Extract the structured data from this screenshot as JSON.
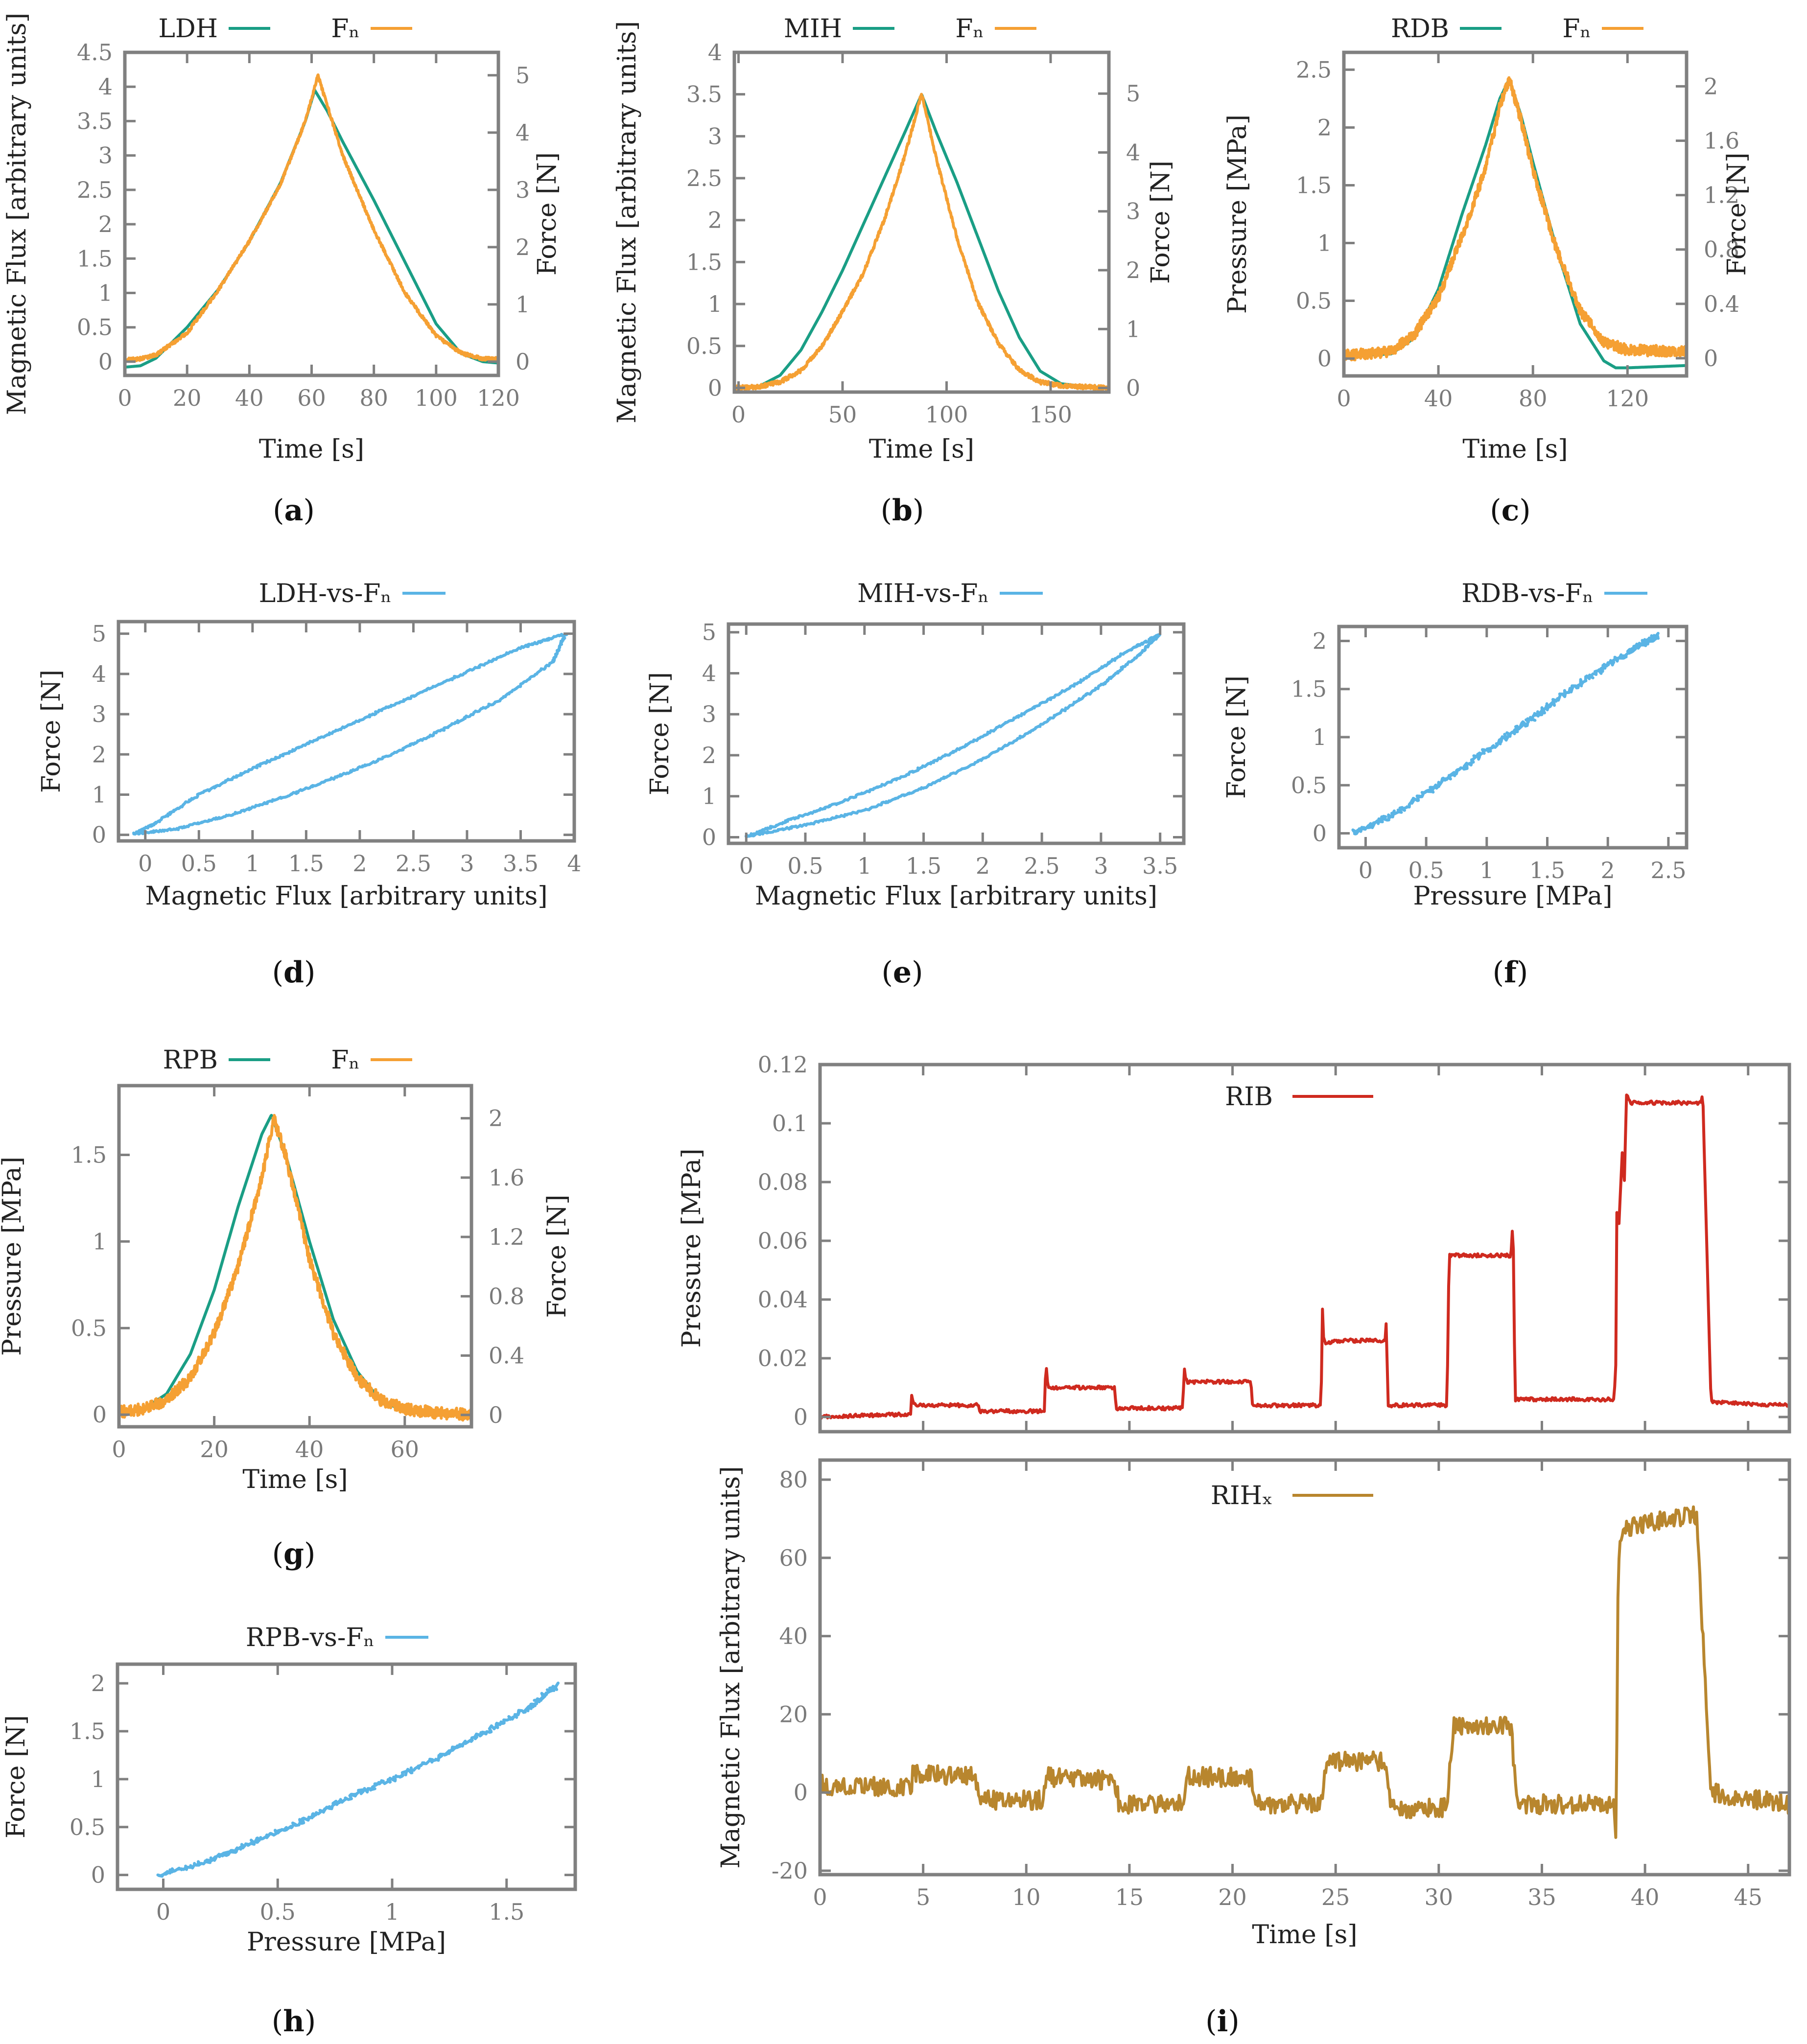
{
  "colors": {
    "green": "#1a9e85",
    "orange": "#f5a033",
    "blue": "#5ab4e5",
    "red": "#cf2a1f",
    "brown": "#b8862e"
  },
  "chart_data": [
    {
      "id": "a",
      "type": "line",
      "caption": "a",
      "xlabel": "Time [s]",
      "ylabel": "Magnetic Flux [arbitrary units]",
      "y2label": "Force [N]",
      "xlim": [
        0,
        120
      ],
      "ylim": [
        -0.2,
        4.5
      ],
      "y2lim": [
        -0.24,
        5.4
      ],
      "xticks": [
        0,
        20,
        40,
        60,
        80,
        100,
        120
      ],
      "yticks": [
        0,
        0.5,
        1,
        1.5,
        2,
        2.5,
        3,
        3.5,
        4,
        4.5
      ],
      "y2ticks": [
        0,
        1,
        2,
        3,
        4,
        5
      ],
      "series": [
        {
          "name": "LDH",
          "color": "green",
          "axis": "y",
          "noise": 0,
          "x": [
            0,
            5,
            10,
            20,
            30,
            40,
            50,
            58,
            61,
            65,
            70,
            80,
            90,
            100,
            108,
            115,
            120
          ],
          "y": [
            -0.08,
            -0.06,
            0.05,
            0.5,
            1.05,
            1.75,
            2.6,
            3.5,
            3.95,
            3.65,
            3.2,
            2.35,
            1.45,
            0.55,
            0.12,
            0.0,
            -0.02
          ]
        },
        {
          "name": "Fₙ",
          "color": "orange",
          "axis": "y2",
          "noise": 0.03,
          "x": [
            0,
            5,
            10,
            20,
            30,
            40,
            50,
            58,
            62,
            66,
            70,
            80,
            90,
            100,
            108,
            115,
            120
          ],
          "y": [
            0.03,
            0.05,
            0.12,
            0.5,
            1.25,
            2.1,
            3.1,
            4.2,
            5.0,
            4.3,
            3.6,
            2.3,
            1.2,
            0.45,
            0.15,
            0.05,
            0.05
          ]
        }
      ]
    },
    {
      "id": "b",
      "type": "line",
      "caption": "b",
      "xlabel": "Time [s]",
      "ylabel": "Magnetic Flux [arbitrary units]",
      "y2label": "Force [N]",
      "xlim": [
        -2,
        178
      ],
      "ylim": [
        -0.05,
        4
      ],
      "y2lim": [
        -0.07,
        5.7
      ],
      "xticks": [
        0,
        50,
        100,
        150
      ],
      "yticks": [
        0,
        0.5,
        1,
        1.5,
        2,
        2.5,
        3,
        3.5,
        4
      ],
      "y2ticks": [
        0,
        1,
        2,
        3,
        4,
        5
      ],
      "series": [
        {
          "name": "MIH",
          "color": "green",
          "axis": "y",
          "noise": 0,
          "x": [
            -2,
            10,
            20,
            30,
            40,
            50,
            60,
            70,
            80,
            88,
            95,
            105,
            115,
            125,
            135,
            145,
            155,
            165,
            178
          ],
          "y": [
            0,
            0.02,
            0.15,
            0.45,
            0.9,
            1.4,
            1.95,
            2.5,
            3.05,
            3.5,
            3.05,
            2.45,
            1.8,
            1.15,
            0.6,
            0.2,
            0.05,
            0.02,
            0.0
          ]
        },
        {
          "name": "Fₙ",
          "color": "orange",
          "axis": "y2",
          "noise": 0.035,
          "x": [
            -2,
            10,
            20,
            30,
            40,
            50,
            60,
            70,
            80,
            88,
            95,
            105,
            115,
            125,
            135,
            145,
            155,
            165,
            178
          ],
          "y": [
            0,
            0.02,
            0.1,
            0.3,
            0.7,
            1.3,
            1.95,
            2.85,
            3.95,
            5.0,
            3.9,
            2.55,
            1.45,
            0.75,
            0.3,
            0.1,
            0.04,
            0.02,
            0.0
          ]
        }
      ]
    },
    {
      "id": "c",
      "type": "line",
      "caption": "c",
      "xlabel": "Time [s]",
      "ylabel": "Pressure [MPa]",
      "y2label": "Force [N]",
      "xlim": [
        0,
        145
      ],
      "ylim": [
        -0.15,
        2.65
      ],
      "y2lim": [
        -0.13,
        2.25
      ],
      "xticks": [
        0,
        40,
        80,
        120
      ],
      "yticks": [
        0,
        0.5,
        1,
        1.5,
        2,
        2.5
      ],
      "y2ticks": [
        0,
        0.4,
        0.8,
        1.2,
        1.6,
        2
      ],
      "series": [
        {
          "name": "RDB",
          "color": "green",
          "axis": "y",
          "noise": 0,
          "x": [
            0,
            20,
            30,
            40,
            50,
            60,
            66,
            70,
            75,
            80,
            90,
            100,
            110,
            115,
            120,
            145
          ],
          "y": [
            0.02,
            0.04,
            0.18,
            0.6,
            1.25,
            1.85,
            2.25,
            2.42,
            2.1,
            1.7,
            0.95,
            0.3,
            -0.02,
            -0.08,
            -0.08,
            -0.06
          ]
        },
        {
          "name": "Fₙ",
          "color": "orange",
          "axis": "y2",
          "noise": 0.04,
          "x": [
            0,
            20,
            30,
            40,
            50,
            60,
            66,
            70,
            75,
            80,
            90,
            100,
            110,
            120,
            145
          ],
          "y": [
            0.02,
            0.05,
            0.18,
            0.45,
            0.9,
            1.4,
            1.85,
            2.05,
            1.75,
            1.38,
            0.8,
            0.35,
            0.12,
            0.06,
            0.05
          ]
        }
      ]
    },
    {
      "id": "d",
      "type": "scatter",
      "caption": "d",
      "xlabel": "Magnetic Flux [arbitrary units]",
      "ylabel": "Force [N]",
      "xlim": [
        -0.25,
        4
      ],
      "ylim": [
        -0.15,
        5.3
      ],
      "xticks": [
        0,
        0.5,
        1,
        1.5,
        2,
        2.5,
        3,
        3.5,
        4
      ],
      "yticks": [
        0,
        1,
        2,
        3,
        4,
        5
      ],
      "series": [
        {
          "name": "LDH-vs-Fₙ",
          "color": "blue",
          "axis": "y",
          "noise": 0.025,
          "x": [
            -0.1,
            0.3,
            0.8,
            1.3,
            1.8,
            2.3,
            2.8,
            3.3,
            3.8,
            3.92,
            3.5,
            3.0,
            2.5,
            2.0,
            1.5,
            1.0,
            0.5,
            0.1,
            -0.1
          ],
          "y": [
            0.03,
            0.15,
            0.5,
            0.95,
            1.45,
            2.0,
            2.65,
            3.35,
            4.3,
            5.0,
            4.65,
            4.05,
            3.45,
            2.85,
            2.25,
            1.65,
            1.0,
            0.3,
            0.03
          ]
        }
      ]
    },
    {
      "id": "e",
      "type": "scatter",
      "caption": "e",
      "xlabel": "Magnetic Flux [arbitrary units]",
      "ylabel": "Force [N]",
      "xlim": [
        -0.15,
        3.7
      ],
      "ylim": [
        -0.15,
        5.2
      ],
      "xticks": [
        0,
        0.5,
        1,
        1.5,
        2,
        2.5,
        3,
        3.5
      ],
      "yticks": [
        0,
        1,
        2,
        3,
        4,
        5
      ],
      "series": [
        {
          "name": "MIH-vs-Fₙ",
          "color": "blue",
          "axis": "y",
          "noise": 0.025,
          "x": [
            0,
            0.5,
            1.0,
            1.5,
            2.0,
            2.5,
            3.0,
            3.3,
            3.5,
            3.2,
            2.8,
            2.3,
            1.8,
            1.3,
            0.8,
            0.4,
            0
          ],
          "y": [
            0.02,
            0.3,
            0.65,
            1.2,
            1.9,
            2.75,
            3.7,
            4.4,
            4.95,
            4.5,
            3.75,
            2.95,
            2.15,
            1.45,
            0.85,
            0.45,
            0.02
          ]
        }
      ]
    },
    {
      "id": "f",
      "type": "scatter",
      "caption": "f",
      "xlabel": "Pressure [MPa]",
      "ylabel": "Force [N]",
      "xlim": [
        -0.22,
        2.65
      ],
      "ylim": [
        -0.15,
        2.15
      ],
      "xticks": [
        0,
        0.5,
        1,
        1.5,
        2,
        2.5
      ],
      "yticks": [
        0,
        0.5,
        1,
        1.5,
        2
      ],
      "series": [
        {
          "name": "RDB-vs-Fₙ",
          "color": "blue",
          "axis": "y",
          "noise": 0.03,
          "x": [
            -0.1,
            0.2,
            0.5,
            0.8,
            1.1,
            1.4,
            1.7,
            2.0,
            2.3,
            2.42
          ],
          "y": [
            0.0,
            0.18,
            0.42,
            0.68,
            0.95,
            1.22,
            1.5,
            1.75,
            1.98,
            2.05
          ]
        }
      ]
    },
    {
      "id": "g",
      "type": "line",
      "caption": "g",
      "xlabel": "Time [s]",
      "ylabel": "Pressure [MPa]",
      "y2label": "Force [N]",
      "xlim": [
        0,
        74
      ],
      "ylim": [
        -0.07,
        1.9
      ],
      "y2lim": [
        -0.08,
        2.22
      ],
      "xticks": [
        0,
        20,
        40,
        60
      ],
      "yticks": [
        0,
        0.5,
        1,
        1.5
      ],
      "y2ticks": [
        0,
        0.4,
        0.8,
        1.2,
        1.6,
        2
      ],
      "series": [
        {
          "name": "RPB",
          "color": "green",
          "axis": "y",
          "noise": 0,
          "x": [
            0,
            5,
            10,
            15,
            20,
            25,
            30,
            32,
            35,
            40,
            45,
            50,
            55,
            60,
            65,
            74
          ],
          "y": [
            0.0,
            0.03,
            0.12,
            0.35,
            0.72,
            1.2,
            1.62,
            1.73,
            1.5,
            1.0,
            0.55,
            0.25,
            0.08,
            0.02,
            0.0,
            0.0
          ]
        },
        {
          "name": "Fₙ",
          "color": "orange",
          "axis": "y2",
          "noise": 0.04,
          "x": [
            0,
            5,
            10,
            15,
            20,
            25,
            30,
            32.5,
            35,
            40,
            45,
            50,
            55,
            60,
            65,
            74
          ],
          "y": [
            0.02,
            0.04,
            0.1,
            0.25,
            0.55,
            1.0,
            1.6,
            2.0,
            1.75,
            1.05,
            0.55,
            0.25,
            0.1,
            0.04,
            0.02,
            0.0
          ]
        }
      ]
    },
    {
      "id": "h",
      "type": "scatter",
      "caption": "h",
      "xlabel": "Pressure [MPa]",
      "ylabel": "Force [N]",
      "xlim": [
        -0.2,
        1.8
      ],
      "ylim": [
        -0.15,
        2.2
      ],
      "xticks": [
        0,
        0.5,
        1,
        1.5
      ],
      "yticks": [
        0,
        0.5,
        1,
        1.5,
        2
      ],
      "series": [
        {
          "name": "RPB-vs-Fₙ",
          "color": "blue",
          "axis": "y",
          "noise": 0.025,
          "x": [
            -0.02,
            0.2,
            0.4,
            0.6,
            0.8,
            1.0,
            1.2,
            1.4,
            1.6,
            1.72
          ],
          "y": [
            0.0,
            0.15,
            0.35,
            0.55,
            0.8,
            1.0,
            1.22,
            1.48,
            1.75,
            1.98
          ]
        }
      ]
    },
    {
      "id": "i_top",
      "type": "line",
      "caption": "",
      "xlabel": "",
      "ylabel": "Pressure [MPa]",
      "xlim": [
        0,
        47
      ],
      "ylim": [
        -0.005,
        0.12
      ],
      "xticks": [
        0,
        5,
        10,
        15,
        20,
        25,
        30,
        35,
        40,
        45
      ],
      "xtickLabels": false,
      "yticks": [
        0,
        0.02,
        0.04,
        0.06,
        0.08,
        0.1,
        0.12
      ],
      "series": [
        {
          "name": "RIB",
          "color": "red",
          "axis": "y",
          "noise": 0.0006,
          "x": [
            0,
            4.4,
            4.45,
            4.55,
            4.65,
            7.7,
            7.75,
            10.9,
            10.95,
            11.0,
            11.1,
            14.3,
            14.35,
            17.6,
            17.65,
            17.7,
            17.8,
            20.9,
            20.95,
            24.3,
            24.35,
            24.4,
            24.5,
            25.0,
            27.4,
            27.45,
            27.55,
            30.4,
            30.5,
            30.6,
            33.5,
            33.6,
            33.7,
            38.5,
            38.6,
            38.65,
            38.7,
            38.9,
            39.0,
            39.1,
            39.3,
            42.7,
            42.8,
            43.2,
            47
          ],
          "y": [
            0.0,
            0.001,
            0.008,
            0.004,
            0.004,
            0.004,
            0.002,
            0.002,
            0.022,
            0.012,
            0.01,
            0.01,
            0.003,
            0.003,
            0.018,
            0.014,
            0.012,
            0.012,
            0.004,
            0.004,
            0.04,
            0.028,
            0.025,
            0.026,
            0.026,
            0.032,
            0.004,
            0.004,
            0.055,
            0.055,
            0.055,
            0.067,
            0.006,
            0.006,
            0.02,
            0.09,
            0.06,
            0.09,
            0.08,
            0.11,
            0.107,
            0.107,
            0.11,
            0.005,
            0.004
          ]
        }
      ]
    },
    {
      "id": "i_bottom",
      "type": "line",
      "caption": "i",
      "xlabel": "Time [s]",
      "ylabel": "Magnetic Flux [arbitrary units]",
      "xlim": [
        0,
        47
      ],
      "ylim": [
        -21,
        85
      ],
      "xticks": [
        0,
        5,
        10,
        15,
        20,
        25,
        30,
        35,
        40,
        45
      ],
      "yticks": [
        -20,
        0,
        20,
        40,
        60,
        80
      ],
      "ytickText": [
        "-20",
        "0",
        "20",
        "40",
        "60",
        "80"
      ],
      "series": [
        {
          "name": "RIHₓ",
          "color": "brown",
          "axis": "y",
          "noise": 2.5,
          "x": [
            0,
            4.4,
            4.5,
            7.5,
            7.7,
            10.8,
            11.0,
            14.3,
            14.5,
            17.6,
            17.8,
            20.9,
            21.2,
            24.3,
            24.6,
            27.4,
            27.7,
            30.4,
            30.7,
            33.5,
            33.8,
            38.5,
            38.6,
            38.7,
            38.9,
            39.2,
            42.5,
            42.8,
            43.2,
            47
          ],
          "y": [
            2,
            1,
            5,
            4,
            -2,
            -2,
            4,
            3,
            -3,
            -3,
            4,
            4,
            -3,
            -3,
            8,
            8,
            -4,
            -4,
            17,
            17,
            -3,
            -3,
            -15,
            60,
            66,
            68,
            71,
            40,
            0,
            -3
          ]
        }
      ]
    }
  ]
}
